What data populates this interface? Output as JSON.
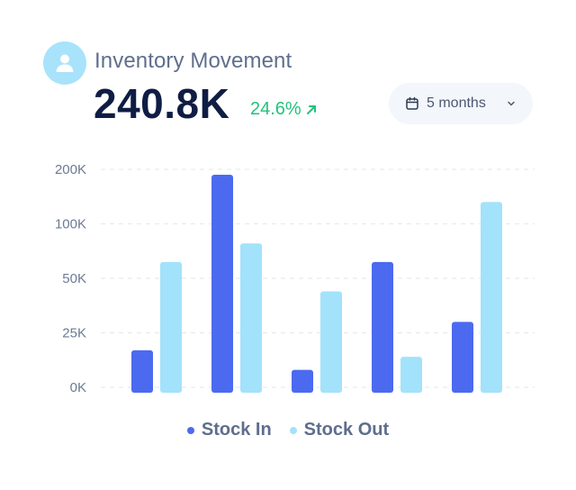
{
  "header": {
    "avatar_icon": "user-icon",
    "title": "Inventory Movement",
    "total": "240.8K",
    "change": "24.6%",
    "change_icon": "arrow-up-right-icon",
    "change_color": "#22c27a"
  },
  "period_select": {
    "icon": "calendar-icon",
    "value": "5 months",
    "chevron_icon": "chevron-down-icon"
  },
  "colors": {
    "stock_in": "#4b6af0",
    "stock_out": "#a3e2fb",
    "grid": "#e6eaf1"
  },
  "chart_data": {
    "type": "bar",
    "title": "",
    "xlabel": "",
    "ylabel": "",
    "y_ticks": [
      "0K",
      "25K",
      "50K",
      "100K",
      "200K"
    ],
    "y_scale": "non-uniform (ticks at 0K, 25K, 50K, 100K, 200K equally spaced)",
    "ylim": [
      0,
      200
    ],
    "grid": true,
    "legend_position": "bottom-center",
    "categories": [
      "",
      "",
      "",
      "",
      ""
    ],
    "series": [
      {
        "name": "Stock In",
        "values": [
          17,
          190,
          8,
          65,
          30
        ]
      },
      {
        "name": "Stock Out",
        "values": [
          65,
          82,
          44,
          14,
          140
        ]
      }
    ]
  }
}
